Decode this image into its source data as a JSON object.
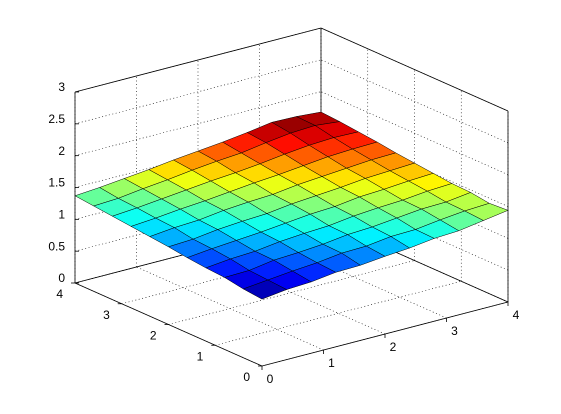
{
  "chart_data": {
    "type": "surface",
    "colormap": "jet",
    "grid": true,
    "x": [
      0,
      0.4,
      0.8,
      1.2,
      1.6,
      2,
      2.4,
      2.8,
      3.2,
      3.6,
      4
    ],
    "y": [
      0,
      0.4,
      0.8,
      1.2,
      1.6,
      2,
      2.4,
      2.8,
      3.2,
      3.6,
      4
    ],
    "z": [
      [
        1.05,
        1.1,
        1.12,
        1.17,
        1.18,
        1.22,
        1.25,
        1.3,
        1.32,
        1.38,
        1.44
      ],
      [
        1.08,
        1.12,
        1.16,
        1.19,
        1.24,
        1.25,
        1.3,
        1.31,
        1.36,
        1.4,
        1.42
      ],
      [
        1.13,
        1.14,
        1.2,
        1.22,
        1.25,
        1.3,
        1.32,
        1.36,
        1.4,
        1.41,
        1.46
      ],
      [
        1.15,
        1.19,
        1.21,
        1.26,
        1.29,
        1.31,
        1.36,
        1.39,
        1.41,
        1.45,
        1.47
      ],
      [
        1.18,
        1.22,
        1.25,
        1.28,
        1.32,
        1.36,
        1.38,
        1.43,
        1.45,
        1.48,
        1.5
      ],
      [
        1.22,
        1.24,
        1.29,
        1.32,
        1.34,
        1.39,
        1.42,
        1.45,
        1.49,
        1.51,
        1.53
      ],
      [
        1.25,
        1.29,
        1.31,
        1.36,
        1.39,
        1.41,
        1.46,
        1.49,
        1.52,
        1.55,
        1.56
      ],
      [
        1.28,
        1.31,
        1.35,
        1.38,
        1.42,
        1.46,
        1.49,
        1.53,
        1.57,
        1.59,
        1.6
      ],
      [
        1.31,
        1.34,
        1.38,
        1.42,
        1.46,
        1.49,
        1.53,
        1.58,
        1.62,
        1.64,
        1.63
      ],
      [
        1.34,
        1.36,
        1.41,
        1.45,
        1.5,
        1.54,
        1.57,
        1.63,
        1.68,
        1.7,
        1.66
      ],
      [
        1.37,
        1.4,
        1.44,
        1.48,
        1.53,
        1.57,
        1.61,
        1.66,
        1.72,
        1.71,
        1.68
      ]
    ],
    "xlim": [
      0,
      4
    ],
    "ylim": [
      0,
      4
    ],
    "zlim": [
      0,
      3
    ],
    "xticks": [
      0,
      1,
      2,
      3,
      4
    ],
    "yticks": [
      0,
      1,
      2,
      3,
      4
    ],
    "zticks": [
      0,
      0.5,
      1,
      1.5,
      2,
      2.5,
      3
    ]
  }
}
